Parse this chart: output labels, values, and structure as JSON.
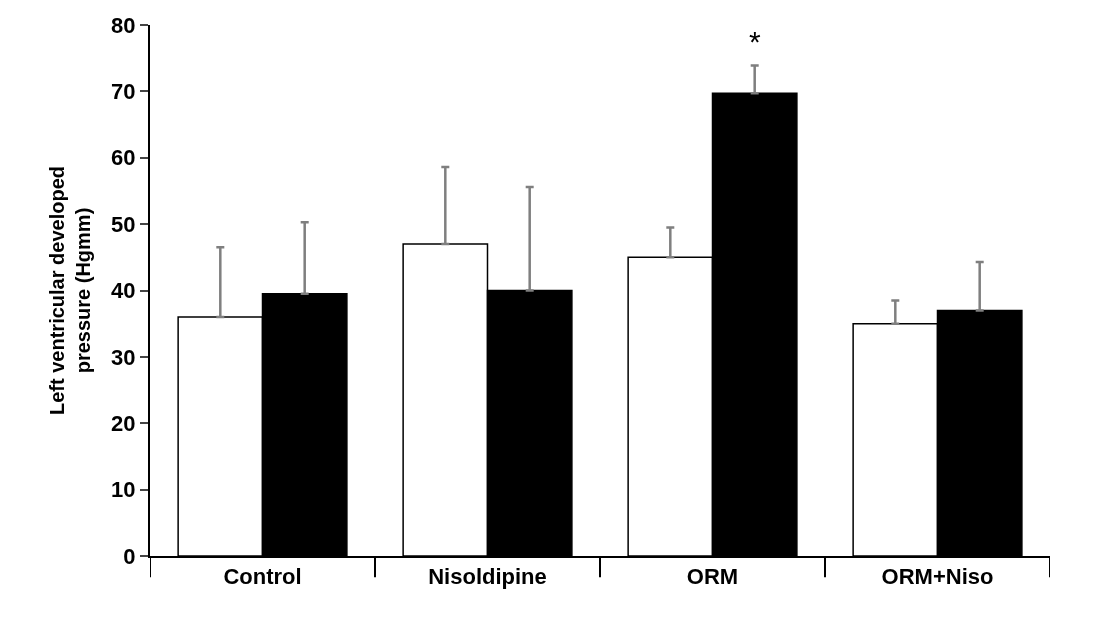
{
  "chart_data": {
    "type": "bar",
    "ylabel": "Left ventricular developed pressure (Hgmm)",
    "categories": [
      "Control",
      "Nisoldipine",
      "ORM",
      "ORM+Niso"
    ],
    "series": [
      {
        "color": "#ffffff",
        "values": [
          36,
          47,
          45,
          35
        ],
        "errors": [
          [
            36,
            46.5
          ],
          [
            47,
            58.6
          ],
          [
            45,
            49.5
          ],
          [
            35,
            38.5
          ]
        ]
      },
      {
        "color": "#000000",
        "values": [
          39.5,
          40,
          69.7,
          37
        ],
        "errors": [
          [
            39.5,
            50.3
          ],
          [
            40,
            55.6
          ],
          [
            69.7,
            73.9
          ],
          [
            37,
            44.3
          ]
        ]
      }
    ],
    "ylim": [
      0,
      80
    ],
    "yticks": [
      0,
      10,
      20,
      30,
      40,
      50,
      60,
      70,
      80
    ],
    "annotations": [
      "*"
    ]
  }
}
